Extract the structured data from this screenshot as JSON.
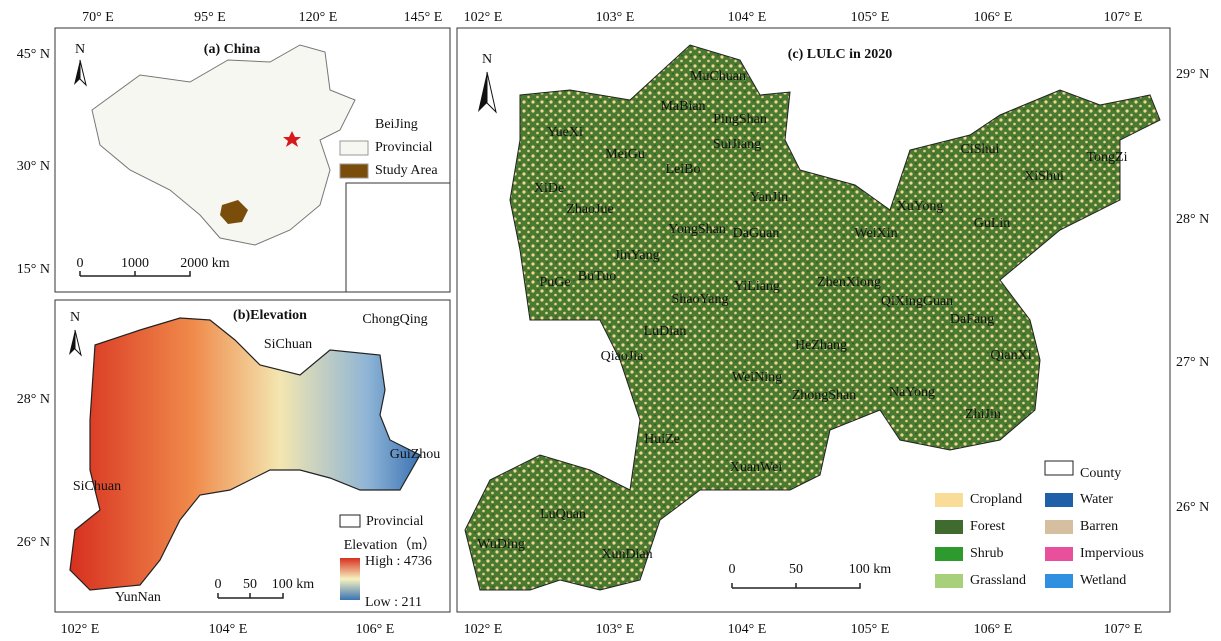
{
  "panel_a": {
    "title": "(a) China",
    "north": "N",
    "lon_labels": [
      "70° E",
      "95° E",
      "120° E",
      "145° E"
    ],
    "lat_labels": [
      "45° N",
      "30° N",
      "15° N"
    ],
    "legend": [
      {
        "name": "BeiJing",
        "color": "#d7191c"
      },
      {
        "name": "Provincial",
        "color": "#f7f7f2"
      },
      {
        "name": "Study Area",
        "color": "#7a4e0a"
      }
    ],
    "scale": [
      "0",
      "1000",
      "2000 km"
    ]
  },
  "panel_b": {
    "title": "(b)Elevation",
    "north": "N",
    "regions": [
      "ChongQing",
      "SiChuan",
      "SiChuan",
      "GuiZhou",
      "YunNan"
    ],
    "legend": {
      "boundary": "Provincial",
      "title": "Elevation（m）",
      "high": "High : 4736",
      "low": "Low : 211"
    },
    "scale": [
      "0",
      "50",
      "100 km"
    ],
    "lat_labels": [
      "28° N",
      "26° N"
    ],
    "lon_labels": [
      "102° E",
      "104° E",
      "106° E"
    ]
  },
  "panel_c": {
    "title": "(c) LULC in 2020",
    "north": "N",
    "lon_labels_top": [
      "102° E",
      "103° E",
      "104° E",
      "105° E",
      "106° E",
      "107° E"
    ],
    "lon_labels_bottom": [
      "102° E",
      "103° E",
      "104° E",
      "105° E",
      "106° E",
      "107° E"
    ],
    "lat_labels": [
      "29° N",
      "28° N",
      "27° N",
      "26° N"
    ],
    "counties": [
      "YueXi",
      "MuChuan",
      "MaBian",
      "PingShan",
      "SuiJiang",
      "MeiGu",
      "LeiBo",
      "XiDe",
      "ZhaoJue",
      "YanJin",
      "YongShan",
      "DaGuan",
      "JinYang",
      "PuGe",
      "BuTuo",
      "ShaoYang",
      "YiLiang",
      "ZhenXiong",
      "WeiXin",
      "XuYong",
      "GuLin",
      "CiShui",
      "XiShui",
      "TongZi",
      "QiXingGuan",
      "DaFang",
      "LuDian",
      "QiaoJia",
      "HeZhang",
      "QianXi",
      "WeiNing",
      "ZhongShan",
      "NaYong",
      "ZhiJin",
      "HuiZe",
      "XuanWei",
      "LuQuan",
      "WuDing",
      "XunDian"
    ],
    "legend": {
      "county": "County",
      "classes": [
        {
          "name": "Cropland",
          "color": "#f8dc97"
        },
        {
          "name": "Water",
          "color": "#1f5fa8"
        },
        {
          "name": "Forest",
          "color": "#3f6b2f"
        },
        {
          "name": "Barren",
          "color": "#d6bfa0"
        },
        {
          "name": "Shrub",
          "color": "#2e9a2e"
        },
        {
          "name": "Impervious",
          "color": "#e8509c"
        },
        {
          "name": "Grassland",
          "color": "#a8d07a"
        },
        {
          "name": "Wetland",
          "color": "#2f8fe0"
        }
      ]
    },
    "scale": [
      "0",
      "50",
      "100 km"
    ]
  }
}
